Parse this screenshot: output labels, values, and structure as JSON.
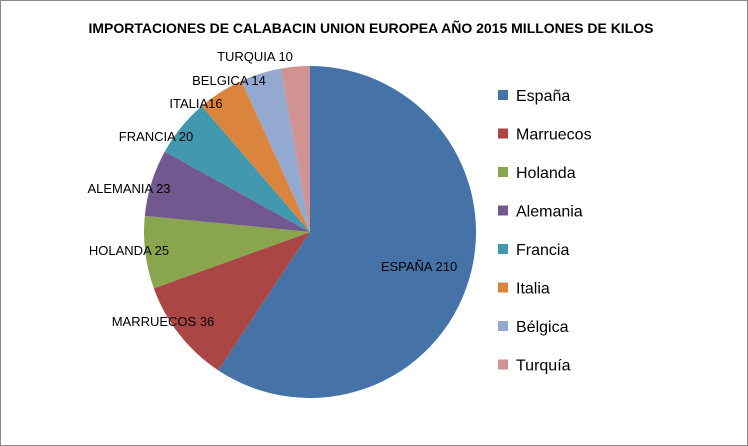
{
  "chart_data": {
    "type": "pie",
    "title": "IMPORTACIONES DE CALABACIN UNION EUROPEA AÑO 2015 MILLONES DE KILOS",
    "slices": [
      {
        "legend": "España",
        "label": "ESPAÑA 210",
        "value": 210,
        "color": "#4572A7"
      },
      {
        "legend": "Marruecos",
        "label": "MARRUECOS 36",
        "value": 36,
        "color": "#AA4643"
      },
      {
        "legend": "Holanda",
        "label": "HOLANDA 25",
        "value": 25,
        "color": "#89A54E"
      },
      {
        "legend": "Alemania",
        "label": "ALEMANIA 23",
        "value": 23,
        "color": "#71588F"
      },
      {
        "legend": "Francia",
        "label": "FRANCIA 20",
        "value": 20,
        "color": "#4198AF"
      },
      {
        "legend": "Italia",
        "label": "ITALIA16",
        "value": 16,
        "color": "#DB843D"
      },
      {
        "legend": "Bélgica",
        "label": "BELGICA 14",
        "value": 14,
        "color": "#93A9CF"
      },
      {
        "legend": "Turquía",
        "label": "TURQUIA 10",
        "value": 10,
        "color": "#D19392"
      }
    ],
    "legend_position": "right"
  }
}
